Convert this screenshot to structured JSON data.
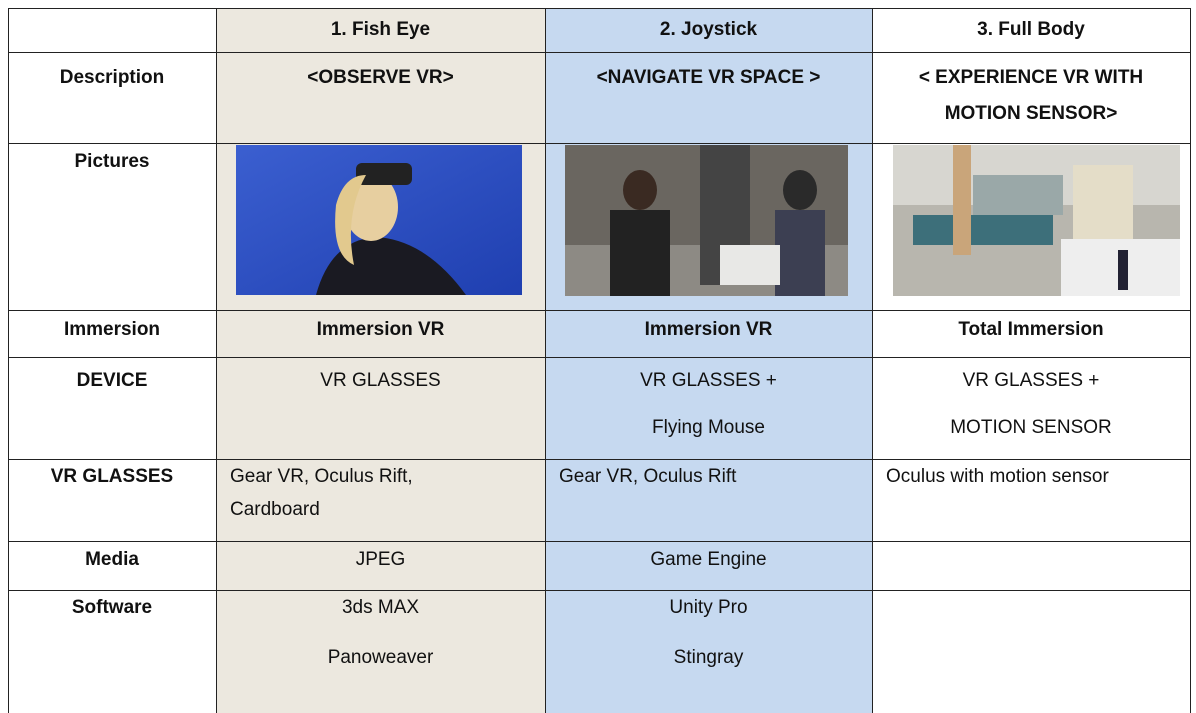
{
  "table": {
    "columns": [
      "1. Fish Eye",
      "2. Joystick",
      "3. Full Body"
    ],
    "rows": [
      {
        "label": "Description",
        "cells": [
          [
            "<OBSERVE VR>"
          ],
          [
            "<NAVIGATE VR SPACE >"
          ],
          [
            "< EXPERIENCE VR WITH",
            "MOTION SENSOR>"
          ]
        ]
      },
      {
        "label": "Pictures",
        "cells": [
          [],
          [],
          []
        ]
      },
      {
        "label": "Immersion",
        "cells": [
          [
            "Immersion VR"
          ],
          [
            "Immersion VR"
          ],
          [
            "Total Immersion"
          ]
        ]
      },
      {
        "label": "DEVICE",
        "cells": [
          [
            "VR GLASSES"
          ],
          [
            "VR GLASSES +",
            "Flying Mouse"
          ],
          [
            "VR GLASSES +",
            "MOTION SENSOR"
          ]
        ]
      },
      {
        "label": "VR GLASSES",
        "cells": [
          [
            "Gear VR, Oculus Rift,",
            "Cardboard"
          ],
          [
            "Gear VR, Oculus Rift"
          ],
          [
            "Oculus with motion sensor"
          ]
        ]
      },
      {
        "label": "Media",
        "cells": [
          [
            "JPEG"
          ],
          [
            "Game Engine"
          ],
          []
        ]
      },
      {
        "label": "Software",
        "cells": [
          [
            "3ds MAX",
            "Panoweaver"
          ],
          [
            "Unity Pro",
            "Stingray"
          ],
          []
        ]
      }
    ]
  }
}
